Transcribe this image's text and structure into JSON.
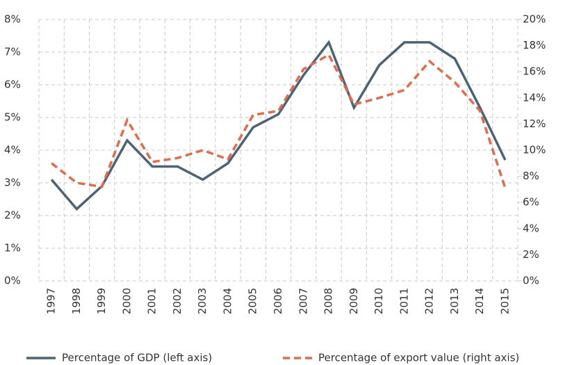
{
  "chart_data": {
    "type": "line",
    "categories": [
      "1997",
      "1998",
      "1999",
      "2000",
      "2001",
      "2002",
      "2003",
      "2004",
      "2005",
      "2006",
      "2007",
      "2008",
      "2009",
      "2010",
      "2011",
      "2012",
      "2013",
      "2014",
      "2015"
    ],
    "series": [
      {
        "name": "Percentage of GDP (left axis)",
        "color": "#4b6375",
        "dash": false,
        "values": [
          3.1,
          2.2,
          2.9,
          4.3,
          3.5,
          3.5,
          3.1,
          3.6,
          4.7,
          5.1,
          6.3,
          7.3,
          5.3,
          6.6,
          7.3,
          7.3,
          6.8,
          5.3,
          3.7
        ]
      },
      {
        "name": "Percentage of export value (right axis)",
        "color": "#e8694a",
        "dash": true,
        "axis": "y2",
        "values": [
          9.0,
          7.5,
          7.2,
          12.3,
          9.1,
          9.4,
          10.0,
          9.3,
          12.7,
          13.0,
          16.2,
          17.3,
          13.5,
          14.0,
          14.6,
          16.8,
          15.2,
          13.0,
          7.1
        ]
      }
    ],
    "ylim": [
      0,
      8
    ],
    "yticks": [
      {
        "value": 0,
        "label": "0%"
      },
      {
        "value": 1,
        "label": "1%"
      },
      {
        "value": 2,
        "label": "2%"
      },
      {
        "value": 3,
        "label": "3%"
      },
      {
        "value": 4,
        "label": "4%"
      },
      {
        "value": 5,
        "label": "5%"
      },
      {
        "value": 6,
        "label": "6%"
      },
      {
        "value": 7,
        "label": "7%"
      },
      {
        "value": 8,
        "label": "8%"
      }
    ],
    "y2lim": [
      0,
      20
    ],
    "y2ticks": [
      {
        "value": 0,
        "label": "0%"
      },
      {
        "value": 2,
        "label": "2%"
      },
      {
        "value": 4,
        "label": "4%"
      },
      {
        "value": 6,
        "label": "6%"
      },
      {
        "value": 8,
        "label": "8%"
      },
      {
        "value": 10,
        "label": "10%"
      },
      {
        "value": 12,
        "label": "12%"
      },
      {
        "value": 14,
        "label": "14%"
      },
      {
        "value": 16,
        "label": "16%"
      },
      {
        "value": 18,
        "label": "18%"
      },
      {
        "value": 20,
        "label": "20%"
      }
    ],
    "grid": true,
    "legend": "bottom"
  }
}
